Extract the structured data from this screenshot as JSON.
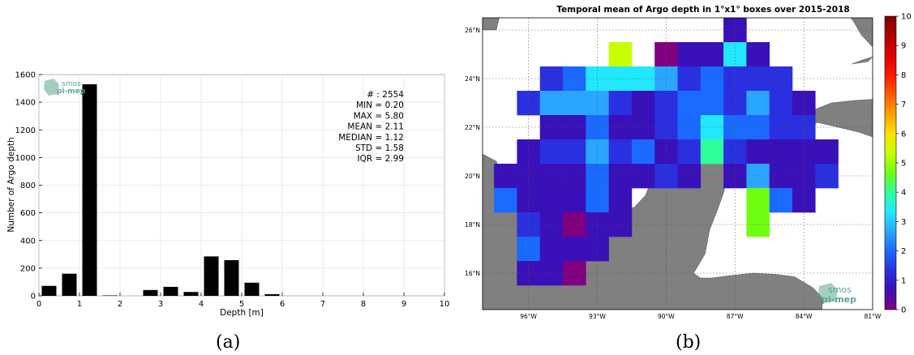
{
  "chart_data": [
    {
      "type": "bar",
      "panel_label": "(a)",
      "xlabel": "Depth [m]",
      "ylabel": "Number of Argo depth",
      "xlim": [
        0,
        10
      ],
      "ylim": [
        0,
        1600
      ],
      "xticks": [
        0,
        1,
        2,
        3,
        4,
        5,
        6,
        7,
        8,
        9,
        10
      ],
      "yticks": [
        0,
        200,
        400,
        600,
        800,
        1000,
        1200,
        1400,
        1600
      ],
      "grid": true,
      "bar_color": "#000000",
      "x": [
        0.25,
        0.75,
        1.25,
        1.75,
        2.25,
        2.75,
        3.25,
        3.75,
        4.25,
        4.75,
        5.25,
        5.75
      ],
      "values": [
        72,
        160,
        1530,
        3,
        0,
        42,
        65,
        28,
        285,
        258,
        95,
        12
      ],
      "stats": [
        {
          "label": "# :",
          "value": "2554"
        },
        {
          "label": "MIN =",
          "value": "0.20"
        },
        {
          "label": "MAX =",
          "value": " 5.80"
        },
        {
          "label": "MEAN =",
          "value": "2.11"
        },
        {
          "label": "MEDIAN =",
          "value": "1.12"
        },
        {
          "label": "STD =",
          "value": "1.58"
        },
        {
          "label": "IQR =",
          "value": "2.99"
        }
      ],
      "logo": {
        "line1": "smos",
        "line2": "pi-mep",
        "color": "#5aa88a"
      }
    },
    {
      "type": "heatmap",
      "panel_label": "(b)",
      "title": "Temporal mean of Argo depth in 1°x1° boxes over 2015-2018",
      "lon_range": [
        -98,
        -81
      ],
      "lat_range": [
        14.5,
        26.5
      ],
      "xticks": [
        "96°W",
        "93°W",
        "90°W",
        "87°W",
        "84°W",
        "81°W"
      ],
      "xtick_values": [
        -96,
        -93,
        -90,
        -87,
        -84,
        -81
      ],
      "yticks": [
        "16°N",
        "18°N",
        "20°N",
        "22°N",
        "24°N",
        "26°N"
      ],
      "ytick_values": [
        16,
        18,
        20,
        22,
        24,
        26
      ],
      "colorbar": {
        "min": 0,
        "max": 10,
        "ticks": [
          0,
          1,
          2,
          3,
          4,
          5,
          6,
          7,
          8,
          9,
          10
        ],
        "colormap": [
          "#800080",
          "#3a10b8",
          "#2a30e0",
          "#1a6aff",
          "#2aa6ff",
          "#22e8ff",
          "#30ff9a",
          "#70ff10",
          "#c8ff00",
          "#ffe000",
          "#ffa000",
          "#ff5a00",
          "#ff1800",
          "#e00000",
          "#b00000",
          "#800000"
        ]
      },
      "cells_note": "lon lat value",
      "cells": [
        [
          -87,
          26,
          1.0
        ],
        [
          -92,
          25,
          5.0
        ],
        [
          -90,
          25,
          0.2
        ],
        [
          -89,
          25,
          1.2
        ],
        [
          -88,
          25,
          1.2
        ],
        [
          -87,
          25,
          3.2
        ],
        [
          -86,
          25,
          1.2
        ],
        [
          -95,
          24,
          1.3
        ],
        [
          -94,
          24,
          2.2
        ],
        [
          -93,
          24,
          3.6
        ],
        [
          -92,
          24,
          3.6
        ],
        [
          -91,
          24,
          3.6
        ],
        [
          -90,
          24,
          2.8
        ],
        [
          -89,
          24,
          1.8
        ],
        [
          -88,
          24,
          2.2
        ],
        [
          -87,
          24,
          1.5
        ],
        [
          -86,
          24,
          1.3
        ],
        [
          -85,
          24,
          1.3
        ],
        [
          -96,
          23,
          1.3
        ],
        [
          -95,
          23,
          2.6
        ],
        [
          -94,
          23,
          2.6
        ],
        [
          -93,
          23,
          2.6
        ],
        [
          -92,
          23,
          1.8
        ],
        [
          -91,
          23,
          1.2
        ],
        [
          -90,
          23,
          1.6
        ],
        [
          -89,
          23,
          2.4
        ],
        [
          -88,
          23,
          2.4
        ],
        [
          -87,
          23,
          1.5
        ],
        [
          -86,
          23,
          2.6
        ],
        [
          -85,
          23,
          1.5
        ],
        [
          -84,
          23,
          1.2
        ],
        [
          -95,
          22,
          1.2
        ],
        [
          -94,
          22,
          1.2
        ],
        [
          -93,
          22,
          2.0
        ],
        [
          -92,
          22,
          1.2
        ],
        [
          -91,
          22,
          1.2
        ],
        [
          -90,
          22,
          1.5
        ],
        [
          -89,
          22,
          2.2
        ],
        [
          -88,
          22,
          3.7
        ],
        [
          -87,
          22,
          2.0
        ],
        [
          -86,
          22,
          2.0
        ],
        [
          -85,
          22,
          1.5
        ],
        [
          -84,
          22,
          1.5
        ],
        [
          -96,
          21,
          1.2
        ],
        [
          -95,
          21,
          1.6
        ],
        [
          -94,
          21,
          1.6
        ],
        [
          -93,
          21,
          2.6
        ],
        [
          -92,
          21,
          1.6
        ],
        [
          -91,
          21,
          2.2
        ],
        [
          -90,
          21,
          1.2
        ],
        [
          -89,
          21,
          1.6
        ],
        [
          -88,
          21,
          4.3
        ],
        [
          -87,
          21,
          1.6
        ],
        [
          -86,
          21,
          1.2
        ],
        [
          -85,
          21,
          1.2
        ],
        [
          -84,
          21,
          1.2
        ],
        [
          -83,
          21,
          1.2
        ],
        [
          -97,
          20,
          1.2
        ],
        [
          -96,
          20,
          1.2
        ],
        [
          -95,
          20,
          1.2
        ],
        [
          -94,
          20,
          1.2
        ],
        [
          -93,
          20,
          2.0
        ],
        [
          -92,
          20,
          1.2
        ],
        [
          -91,
          20,
          1.2
        ],
        [
          -90,
          20,
          1.6
        ],
        [
          -89,
          20,
          1.2
        ],
        [
          -87,
          20,
          1.2
        ],
        [
          -86,
          20,
          2.6
        ],
        [
          -85,
          20,
          1.2
        ],
        [
          -84,
          20,
          1.2
        ],
        [
          -83,
          20,
          1.6
        ],
        [
          -97,
          19,
          2.2
        ],
        [
          -96,
          19,
          1.2
        ],
        [
          -95,
          19,
          1.2
        ],
        [
          -94,
          19,
          1.2
        ],
        [
          -93,
          19,
          2.0
        ],
        [
          -92,
          19,
          1.2
        ],
        [
          -86,
          19,
          4.6
        ],
        [
          -85,
          19,
          2.0
        ],
        [
          -84,
          19,
          1.2
        ],
        [
          -96,
          18,
          1.6
        ],
        [
          -95,
          18,
          1.2
        ],
        [
          -94,
          18,
          0.6
        ],
        [
          -93,
          18,
          1.2
        ],
        [
          -92,
          18,
          1.2
        ],
        [
          -86,
          18,
          4.6
        ],
        [
          -96,
          17,
          2.0
        ],
        [
          -95,
          17,
          1.2
        ],
        [
          -94,
          17,
          1.2
        ],
        [
          -93,
          17,
          1.2
        ],
        [
          -96,
          16,
          1.2
        ],
        [
          -95,
          16,
          1.2
        ],
        [
          -94,
          16,
          0.6
        ]
      ],
      "land_color": "#808080",
      "ocean_color": "#ffffff",
      "logo": {
        "line1": "smos",
        "line2": "pi-mep",
        "color": "#5aa88a"
      }
    }
  ]
}
